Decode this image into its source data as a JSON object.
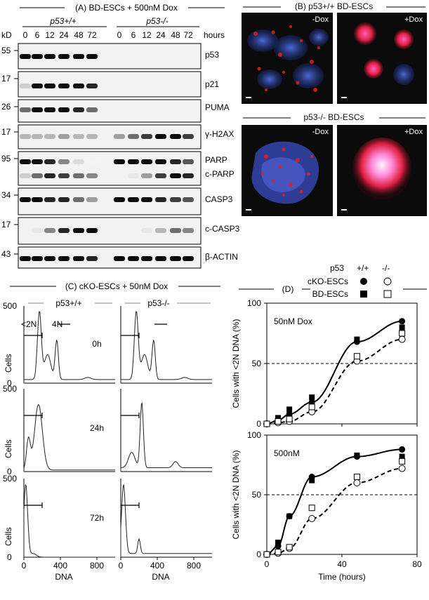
{
  "panelA": {
    "title": "(A)  BD-ESCs + 500nM Dox",
    "geno_wt": "p53+/+",
    "geno_ko": "p53-/-",
    "kd_label": "kD",
    "hours_label": "hours",
    "lanes": [
      "0",
      "6",
      "12",
      "24",
      "48",
      "72",
      "0",
      "6",
      "12",
      "24",
      "48",
      "72"
    ],
    "rows": [
      {
        "kd": "55",
        "proteins": [
          "p53"
        ]
      },
      {
        "kd": "17",
        "proteins": [
          "p21"
        ]
      },
      {
        "kd": "26",
        "proteins": [
          "PUMA"
        ]
      },
      {
        "kd": "17",
        "proteins": [
          "γ-H2AX"
        ]
      },
      {
        "kd": "95",
        "proteins": [
          "PARP",
          "c-PARP"
        ]
      },
      {
        "kd": "34",
        "proteins": [
          "CASP3"
        ]
      },
      {
        "kd": "17",
        "proteins": [
          "c-CASP3"
        ]
      },
      {
        "kd": "43",
        "proteins": [
          "β-ACTIN"
        ]
      }
    ]
  },
  "panelB": {
    "title_wt": "(B)  p53+/+ BD-ESCs",
    "title_ko": "p53-/-  BD-ESCs",
    "minus_dox": "-Dox",
    "plus_dox": "+Dox"
  },
  "panelC": {
    "title": "(C)  cKO-ESCs + 50nM Dox",
    "geno_wt": "p53+/+",
    "geno_ko": "p53-/-",
    "sub2n": "<2N",
    "label4n": "4N",
    "times": [
      "0h",
      "24h",
      "72h"
    ],
    "ylabel": "Cells",
    "xlabel": "DNA",
    "xticks": [
      "0",
      "400",
      "800"
    ],
    "yticks": [
      "0",
      "500"
    ]
  },
  "panelD": {
    "title": "(D)",
    "legend_p53": "p53",
    "legend_wt": "+/+",
    "legend_ko": "-/-",
    "legend_ckO": "cKO-ESCs",
    "legend_bd": "BD-ESCs",
    "top_label": "50nM Dox",
    "bottom_label": "500nM",
    "ylabel": "Cells with <2N DNA (%)",
    "xlabel": "Time (hours)",
    "yticks": [
      "0",
      "50",
      "100"
    ],
    "xticks": [
      "0",
      "40",
      "80"
    ]
  },
  "chart_data": [
    {
      "type": "scatter",
      "title": "50nM Dox",
      "xlabel": "Time (hours)",
      "ylabel": "Cells with <2N DNA (%)",
      "xlim": [
        0,
        80
      ],
      "ylim": [
        0,
        100
      ],
      "series": [
        {
          "name": "cKO-ESCs p53+/+",
          "x": [
            0,
            6,
            12,
            24,
            48,
            72
          ],
          "y": [
            0,
            3,
            8,
            18,
            68,
            85
          ]
        },
        {
          "name": "BD-ESCs p53+/+",
          "x": [
            0,
            6,
            12,
            24,
            48,
            72
          ],
          "y": [
            0,
            5,
            12,
            22,
            70,
            80
          ]
        },
        {
          "name": "cKO-ESCs p53-/-",
          "x": [
            0,
            6,
            12,
            24,
            48,
            72
          ],
          "y": [
            0,
            1,
            2,
            10,
            52,
            70
          ]
        },
        {
          "name": "BD-ESCs p53-/-",
          "x": [
            0,
            6,
            12,
            24,
            48,
            72
          ],
          "y": [
            0,
            2,
            4,
            14,
            56,
            75
          ]
        }
      ]
    },
    {
      "type": "scatter",
      "title": "500nM",
      "xlabel": "Time (hours)",
      "ylabel": "Cells with <2N DNA (%)",
      "xlim": [
        0,
        80
      ],
      "ylim": [
        0,
        100
      ],
      "series": [
        {
          "name": "cKO-ESCs p53+/+",
          "x": [
            0,
            6,
            12,
            24,
            48,
            72
          ],
          "y": [
            0,
            7,
            32,
            65,
            82,
            88
          ]
        },
        {
          "name": "BD-ESCs p53+/+",
          "x": [
            0,
            6,
            12,
            24,
            48,
            72
          ],
          "y": [
            0,
            10,
            32,
            62,
            83,
            82
          ]
        },
        {
          "name": "cKO-ESCs p53-/-",
          "x": [
            0,
            6,
            12,
            24,
            48,
            72
          ],
          "y": [
            0,
            1,
            5,
            30,
            60,
            72
          ]
        },
        {
          "name": "BD-ESCs p53-/-",
          "x": [
            0,
            6,
            12,
            24,
            48,
            72
          ],
          "y": [
            0,
            2,
            6,
            39,
            65,
            78
          ]
        }
      ]
    }
  ]
}
